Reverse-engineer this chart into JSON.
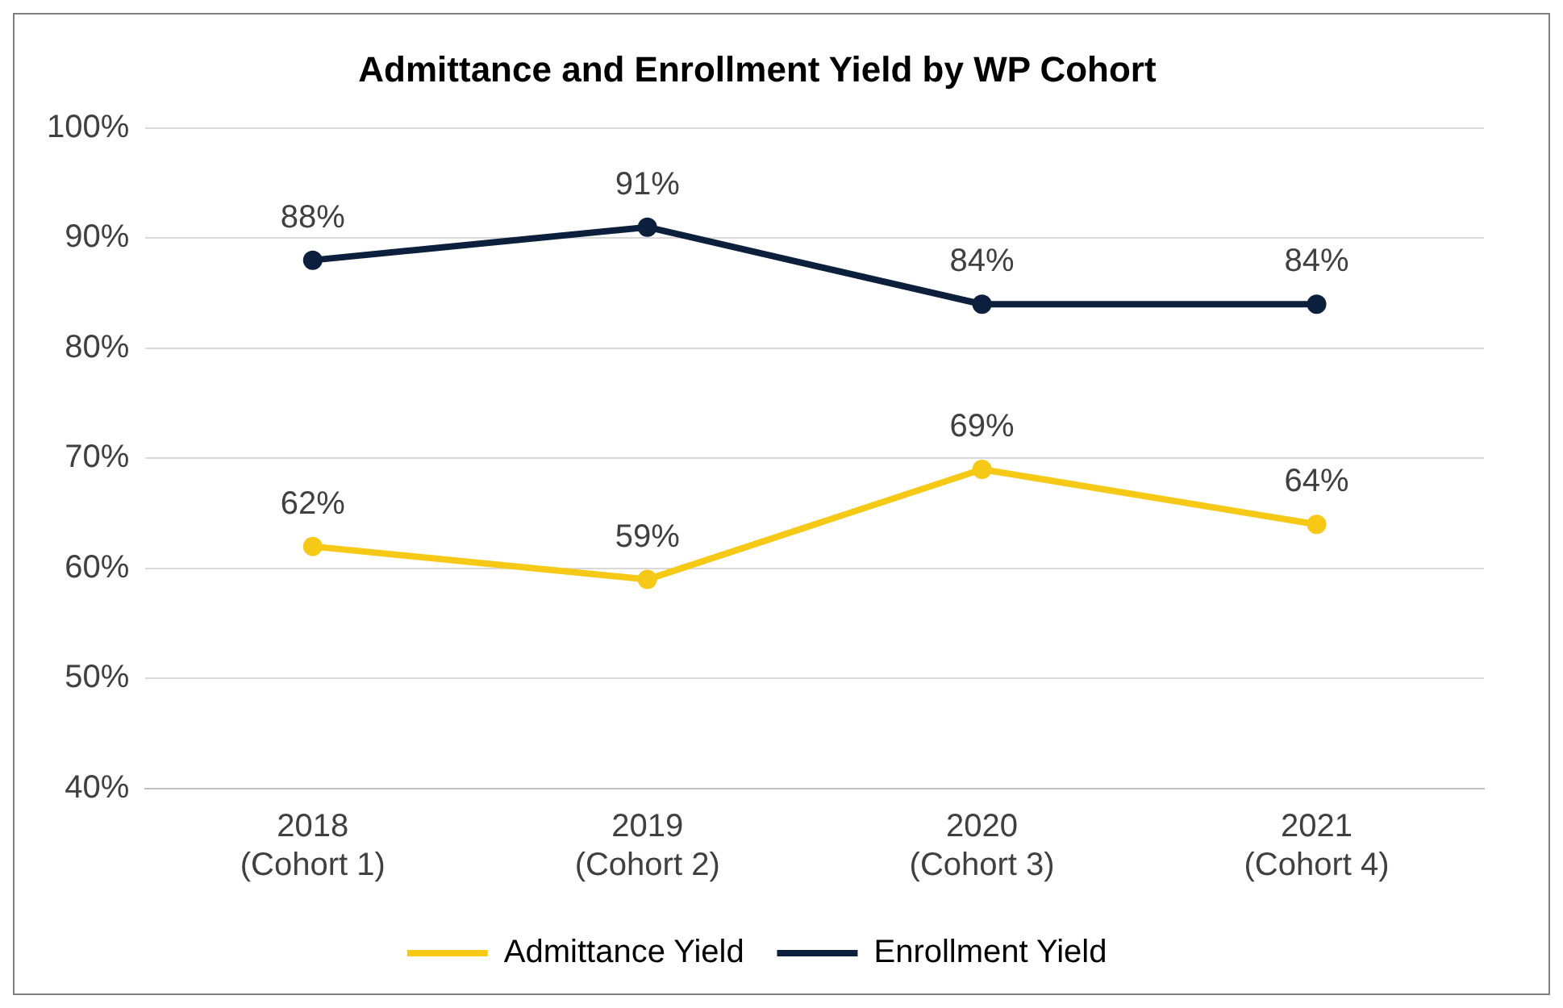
{
  "chart_data": {
    "type": "line",
    "title": "Admittance and Enrollment Yield by WP Cohort",
    "categories": [
      "2018 (Cohort 1)",
      "2019 (Cohort 2)",
      "2020 (Cohort 3)",
      "2021 (Cohort 4)"
    ],
    "series": [
      {
        "name": "Admittance Yield",
        "color": "#f7c917",
        "values": [
          62,
          59,
          69,
          64
        ],
        "value_labels": [
          "62%",
          "59%",
          "69%",
          "64%"
        ]
      },
      {
        "name": "Enrollment Yield",
        "color": "#0c1f3d",
        "values": [
          88,
          91,
          84,
          84
        ],
        "value_labels": [
          "88%",
          "91%",
          "84%",
          "84%"
        ]
      }
    ],
    "ylim": [
      40,
      100
    ],
    "yticks": [
      {
        "value": 40,
        "label": "40%"
      },
      {
        "value": 50,
        "label": "50%"
      },
      {
        "value": 60,
        "label": "60%"
      },
      {
        "value": 70,
        "label": "70%"
      },
      {
        "value": 80,
        "label": "80%"
      },
      {
        "value": 90,
        "label": "90%"
      },
      {
        "value": 100,
        "label": "100%"
      }
    ],
    "grid": "y",
    "legend": "bottom",
    "marker": "circle",
    "line_style": "solid"
  }
}
